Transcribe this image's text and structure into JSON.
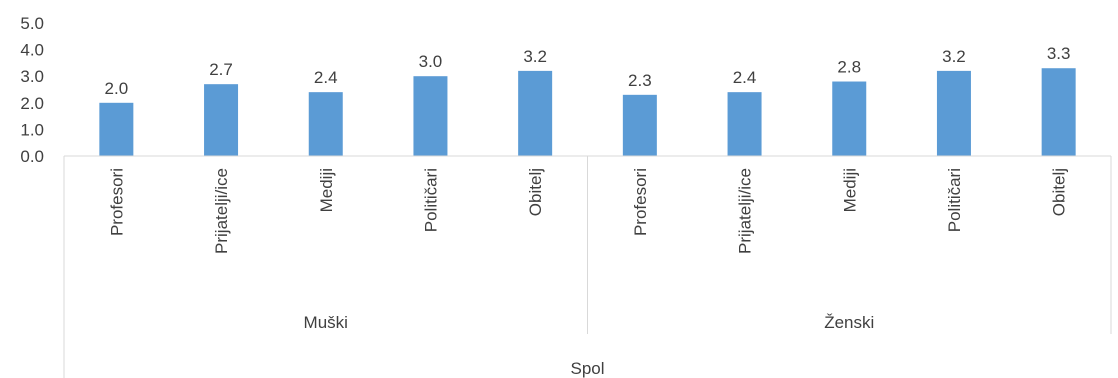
{
  "chart_data": {
    "type": "bar",
    "title": "",
    "xlabel": "Spol",
    "ylabel": "",
    "ylim": [
      0,
      5
    ],
    "yticks": [
      "0.0",
      "1.0",
      "2.0",
      "3.0",
      "4.0",
      "5.0"
    ],
    "grid": false,
    "legend": "none",
    "bar_color": "#5B9BD5",
    "outer_label": "Spol",
    "groups": [
      {
        "label": "Muški",
        "categories": [
          "Profesori",
          "Prijatelji/ice",
          "Mediji",
          "Političari",
          "Obitelj"
        ],
        "values": [
          2.0,
          2.7,
          2.4,
          3.0,
          3.2
        ],
        "value_labels": [
          "2.0",
          "2.7",
          "2.4",
          "3.0",
          "3.2"
        ]
      },
      {
        "label": "Ženski",
        "categories": [
          "Profesori",
          "Prijatelji/ice",
          "Mediji",
          "Političari",
          "Obitelj"
        ],
        "values": [
          2.3,
          2.4,
          2.8,
          3.2,
          3.3
        ],
        "value_labels": [
          "2.3",
          "2.4",
          "2.8",
          "3.2",
          "3.3"
        ]
      }
    ]
  }
}
